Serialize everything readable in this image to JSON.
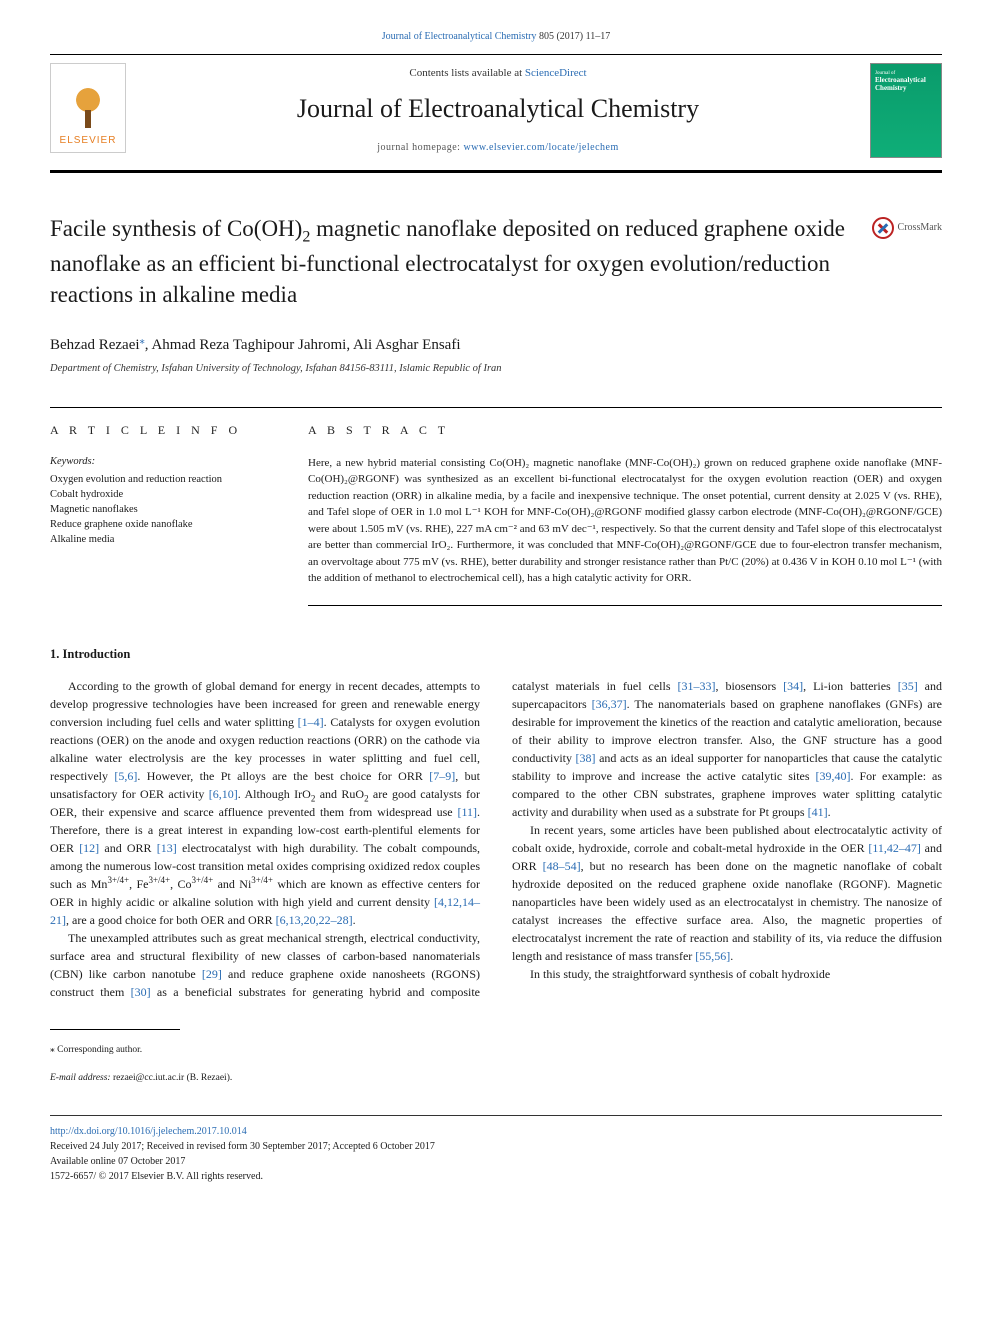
{
  "citation": {
    "journal_link": "Journal of Electroanalytical Chemistry",
    "rest": " 805 (2017) 11–17"
  },
  "masthead": {
    "contents_prefix": "Contents lists available at ",
    "contents_link": "ScienceDirect",
    "journal_title": "Journal of Electroanalytical Chemistry",
    "homepage_prefix": "journal homepage: ",
    "homepage_link": "www.elsevier.com/locate/jelechem",
    "elsevier_word": "ELSEVIER",
    "cover_line1": "Journal of",
    "cover_line2": "Electroanalytical Chemistry"
  },
  "article": {
    "title_pre": "Facile synthesis of Co(OH)",
    "title_sub": "2",
    "title_post": " magnetic nanoflake deposited on reduced graphene oxide nanoflake as an efficient bi-functional electrocatalyst for oxygen evolution/reduction reactions in alkaline media",
    "crossmark": "CrossMark",
    "authors_html": "Behzad Rezaei",
    "author_sup": "⁎",
    "authors_rest": ", Ahmad Reza Taghipour Jahromi, Ali Asghar Ensafi",
    "affiliation": "Department of Chemistry, Isfahan University of Technology, Isfahan 84156-83111, Islamic Republic of Iran"
  },
  "info": {
    "heading": "A R T I C L E  I N F O",
    "keywords_label": "Keywords:",
    "keywords": [
      "Oxygen evolution and reduction reaction",
      "Cobalt hydroxide",
      "Magnetic nanoflakes",
      "Reduce graphene oxide nanoflake",
      "Alkaline media"
    ]
  },
  "abstract": {
    "heading": "A B S T R A C T",
    "text": "Here, a new hybrid material consisting Co(OH)₂ magnetic nanoflake (MNF-Co(OH)₂) grown on reduced graphene oxide nanoflake (MNF-Co(OH)₂@RGONF) was synthesized as an excellent bi-functional electrocatalyst for the oxygen evolution reaction (OER) and oxygen reduction reaction (ORR) in alkaline media, by a facile and inexpensive technique. The onset potential, current density at 2.025 V (vs. RHE), and Tafel slope of OER in 1.0 mol L⁻¹ KOH for MNF-Co(OH)₂@RGONF modified glassy carbon electrode (MNF-Co(OH)₂@RGONF/GCE) were about 1.505 mV (vs. RHE), 227 mA cm⁻² and 63 mV dec⁻¹, respectively. So that the current density and Tafel slope of this electrocatalyst are better than commercial IrO₂. Furthermore, it was concluded that MNF-Co(OH)₂@RGONF/GCE due to four-electron transfer mechanism, an overvoltage about 775 mV (vs. RHE), better durability and stronger resistance rather than Pt/C (20%) at 0.436 V in KOH 0.10 mol L⁻¹ (with the addition of methanol to electrochemical cell), has a high catalytic activity for ORR."
  },
  "body": {
    "heading": "1. Introduction"
  },
  "footer": {
    "corr": "⁎ Corresponding author.",
    "email_label": "E-mail address: ",
    "email": "rezaei@cc.iut.ac.ir",
    "email_tail": " (B. Rezaei).",
    "doi": "http://dx.doi.org/10.1016/j.jelechem.2017.10.014",
    "received": "Received 24 July 2017; Received in revised form 30 September 2017; Accepted 6 October 2017",
    "online": "Available online 07 October 2017",
    "copyright": "1572-6657/ © 2017 Elsevier B.V. All rights reserved."
  },
  "colors": {
    "link": "#2a6cb3",
    "text": "#1a1a1a",
    "elsevier_orange": "#e67e22",
    "cover_green": "#0a9b6b"
  }
}
